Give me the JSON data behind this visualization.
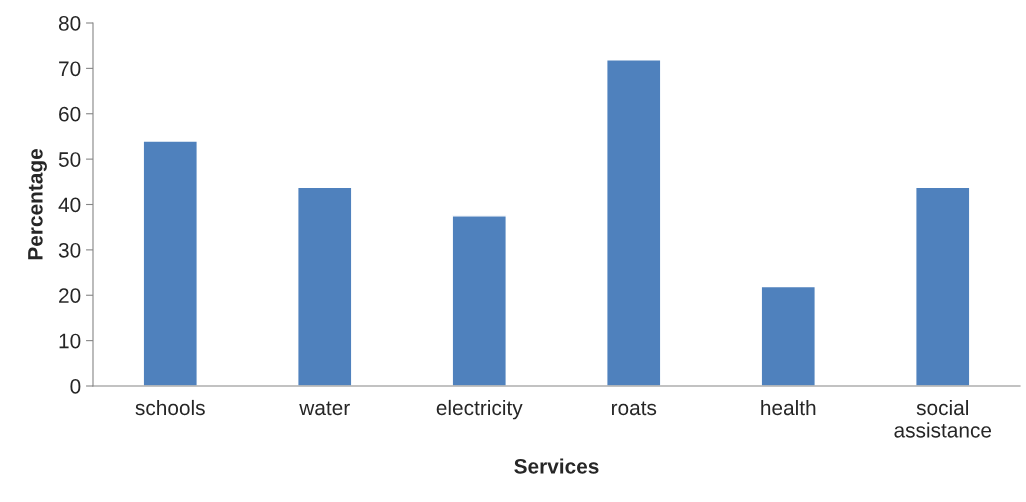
{
  "chart_data": {
    "type": "bar",
    "xlabel": "Services",
    "ylabel": "Percentage",
    "categories": [
      "schools",
      "water",
      "electricity",
      "roats",
      "health",
      "social\nassistance"
    ],
    "values": [
      54,
      43.8,
      37.5,
      71.9,
      21.9,
      43.8
    ],
    "color": "#4f81bd",
    "ylim": [
      0,
      80
    ],
    "yticks": [
      0,
      10,
      20,
      30,
      40,
      50,
      60,
      70,
      80
    ],
    "grid": false,
    "legend": false
  }
}
